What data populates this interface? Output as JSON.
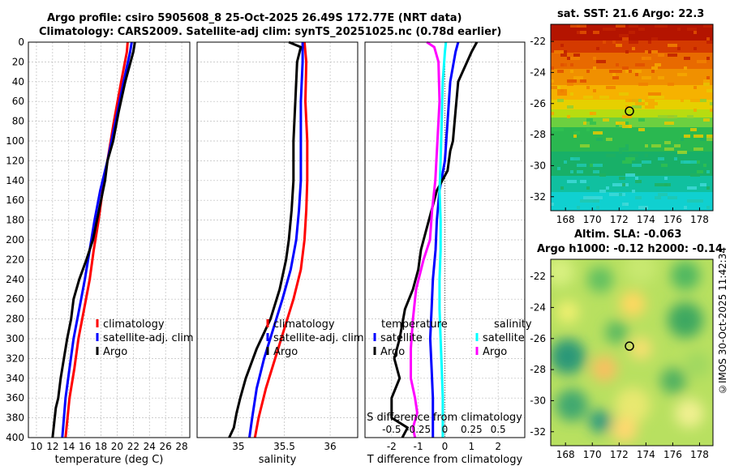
{
  "header": {
    "line1": "Argo profile: csiro 5905608_8 25-Oct-2025 26.49S 172.77E (NRT data)",
    "line2": "Climatology: CARS2009. Satellite-adj clim: synTS_20251025.nc (0.78d earlier)"
  },
  "map_sst": {
    "title": "sat. SST: 21.6 Argo: 22.3",
    "xticks": [
      "168",
      "170",
      "172",
      "174",
      "176",
      "178"
    ],
    "yticks": [
      "-22",
      "-24",
      "-26",
      "-28",
      "-30",
      "-32"
    ]
  },
  "map_sla": {
    "title1": "Altim. SLA: -0.063",
    "title2": "Argo h1000: -0.12 h2000: -0.14",
    "xticks": [
      "168",
      "170",
      "172",
      "174",
      "176",
      "178"
    ],
    "yticks": [
      "-22",
      "-24",
      "-26",
      "-28",
      "-30",
      "-32"
    ]
  },
  "stamp": "©IMOS 30-Oct-2025 11:42:34",
  "chart_data": [
    {
      "type": "line",
      "xlabel": "temperature (deg C)",
      "ylabel": "",
      "xlim": [
        9,
        29
      ],
      "ylim": [
        400,
        0
      ],
      "xticks": [
        "10",
        "12",
        "14",
        "16",
        "18",
        "20",
        "22",
        "24",
        "26",
        "28"
      ],
      "yticks": [
        "0",
        "20",
        "40",
        "60",
        "80",
        "100",
        "120",
        "140",
        "160",
        "180",
        "200",
        "220",
        "240",
        "260",
        "280",
        "300",
        "320",
        "340",
        "360",
        "380",
        "400"
      ],
      "legend": [
        "climatology",
        "satellite-adj. clim",
        "Argo"
      ],
      "series": [
        {
          "name": "climatology",
          "color": "#ff0000",
          "x": [
            21.3,
            21.2,
            20.5,
            19.6,
            18.8,
            18.2,
            17.7,
            17.1,
            16.6,
            15.9,
            15.2,
            14.7,
            14.1,
            13.6
          ],
          "y": [
            0,
            10,
            40,
            80,
            120,
            150,
            180,
            210,
            240,
            270,
            300,
            330,
            360,
            400
          ]
        },
        {
          "name": "satellite-adj. clim",
          "color": "#0000ff",
          "x": [
            21.8,
            21.6,
            20.8,
            19.8,
            18.8,
            17.9,
            17.2,
            16.6,
            16.0,
            15.3,
            14.6,
            14.1,
            13.6,
            13.2
          ],
          "y": [
            0,
            10,
            40,
            80,
            120,
            150,
            180,
            210,
            240,
            270,
            300,
            330,
            360,
            400
          ]
        },
        {
          "name": "Argo",
          "color": "#000000",
          "x": [
            22.2,
            22.0,
            21.0,
            20.2,
            19.5,
            18.8,
            18.5,
            18.0,
            17.5,
            17.0,
            16.2,
            15.3,
            14.6,
            14.3,
            13.8,
            13.4,
            13.0,
            12.7,
            12.4,
            12.2,
            12.0
          ],
          "y": [
            0,
            10,
            40,
            70,
            100,
            120,
            140,
            160,
            180,
            200,
            220,
            240,
            260,
            280,
            300,
            320,
            340,
            360,
            370,
            385,
            400
          ]
        }
      ]
    },
    {
      "type": "line",
      "xlabel": "salinity",
      "ylabel": "",
      "xlim": [
        34.55,
        36.3
      ],
      "ylim": [
        400,
        0
      ],
      "xticks": [
        "35",
        "35.5",
        "36"
      ],
      "legend": [
        "climatology",
        "satellite-adj. clim",
        "Argo"
      ],
      "series": [
        {
          "name": "climatology",
          "color": "#ff0000",
          "x": [
            35.72,
            35.74,
            35.73,
            35.75,
            35.75,
            35.74,
            35.72,
            35.68,
            35.6,
            35.5,
            35.4,
            35.3,
            35.22,
            35.18
          ],
          "y": [
            0,
            20,
            60,
            100,
            140,
            170,
            200,
            230,
            260,
            290,
            320,
            350,
            380,
            400
          ]
        },
        {
          "name": "satellite-adj. clim",
          "color": "#0000ff",
          "x": [
            35.7,
            35.7,
            35.68,
            35.68,
            35.68,
            35.66,
            35.63,
            35.57,
            35.48,
            35.38,
            35.28,
            35.2,
            35.15,
            35.12
          ],
          "y": [
            0,
            20,
            60,
            100,
            140,
            170,
            200,
            230,
            260,
            290,
            320,
            350,
            380,
            400
          ]
        },
        {
          "name": "Argo",
          "color": "#000000",
          "x": [
            35.55,
            35.68,
            35.64,
            35.62,
            35.6,
            35.6,
            35.58,
            35.55,
            35.52,
            35.45,
            35.35,
            35.2,
            35.08,
            35.02,
            34.98,
            34.95,
            34.9
          ],
          "y": [
            0,
            5,
            20,
            60,
            100,
            140,
            170,
            200,
            220,
            250,
            280,
            310,
            340,
            360,
            375,
            390,
            400
          ]
        }
      ]
    },
    {
      "type": "line",
      "xlabel": "T difference from climatology",
      "xlabel_top": "S difference from climatology",
      "xlim": [
        -3,
        3
      ],
      "ylim": [
        400,
        0
      ],
      "xticks": [
        "-2",
        "-1",
        "0",
        "1",
        "2"
      ],
      "xticks_s": [
        "-0.5",
        "-0.25",
        "0",
        "0.25",
        "0.5"
      ],
      "legend_t_title": "temperature",
      "legend_s_title": "salinity",
      "legend": [
        "satellite",
        "Argo",
        "satellite",
        "Argo"
      ],
      "series": [
        {
          "name": "temperature satellite",
          "color": "#0000ff",
          "x": [
            0.5,
            0.4,
            0.2,
            0.1,
            0.0,
            -0.2,
            -0.3,
            -0.35,
            -0.45,
            -0.5,
            -0.55,
            -0.5,
            -0.45,
            -0.45
          ],
          "y": [
            0,
            10,
            40,
            80,
            120,
            150,
            180,
            210,
            240,
            270,
            300,
            330,
            360,
            400
          ]
        },
        {
          "name": "temperature Argo",
          "color": "#000000",
          "x": [
            1.2,
            1.0,
            0.5,
            0.4,
            0.3,
            0.2,
            0.1,
            -0.3,
            -0.5,
            -0.7,
            -0.9,
            -1.0,
            -1.2,
            -1.5,
            -1.7,
            -1.9,
            -1.7,
            -2.0,
            -2.0,
            -1.4,
            -1.6
          ],
          "y": [
            0,
            10,
            40,
            70,
            100,
            110,
            130,
            150,
            170,
            190,
            210,
            230,
            250,
            270,
            300,
            320,
            340,
            360,
            380,
            390,
            400
          ]
        },
        {
          "name": "salinity satellite",
          "color": "#00ffff",
          "x": [
            0.01,
            0.0,
            -0.02,
            -0.03,
            -0.04,
            -0.05,
            -0.04,
            -0.04,
            -0.05,
            -0.05,
            -0.04,
            -0.03,
            -0.02,
            -0.02
          ],
          "y": [
            0,
            10,
            40,
            80,
            120,
            150,
            180,
            210,
            240,
            270,
            300,
            330,
            360,
            400
          ]
        },
        {
          "name": "salinity Argo",
          "color": "#ff00ff",
          "x": [
            -0.17,
            -0.1,
            -0.06,
            -0.05,
            -0.07,
            -0.09,
            -0.12,
            -0.14,
            -0.2,
            -0.27,
            -0.3,
            -0.32,
            -0.32,
            -0.28,
            -0.26,
            -0.3,
            -0.28
          ],
          "y": [
            0,
            5,
            20,
            60,
            100,
            140,
            170,
            200,
            220,
            250,
            280,
            310,
            340,
            360,
            375,
            390,
            400
          ]
        }
      ]
    }
  ]
}
